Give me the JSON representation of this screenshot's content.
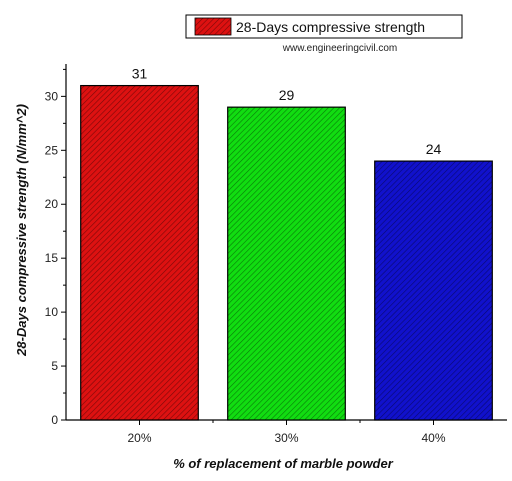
{
  "chart_data": {
    "type": "bar",
    "categories": [
      "20%",
      "30%",
      "40%"
    ],
    "series": [
      {
        "name": "28-Days compressive strength",
        "values": [
          31,
          29,
          24
        ],
        "colors": [
          "#dd1111",
          "#11dd11",
          "#1111cc"
        ]
      }
    ],
    "data_labels": [
      "31",
      "29",
      "24"
    ],
    "xlabel": "% of replacement of marble powder",
    "ylabel": "28-Days compressive strength (N/mm^2)",
    "ylim": [
      0,
      33
    ],
    "yticks": [
      0,
      5,
      10,
      15,
      20,
      25,
      30
    ],
    "grid": false,
    "legend_position": "top-right",
    "hatch": "diagonal"
  },
  "watermark": "www.engineeringcivil.com"
}
